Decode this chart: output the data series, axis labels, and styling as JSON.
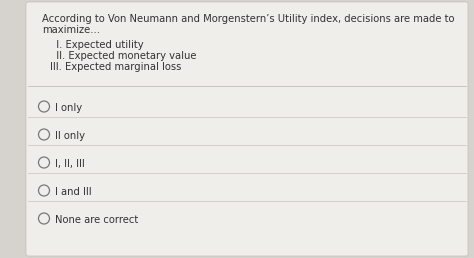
{
  "outer_bg": "#d6d3ce",
  "panel_bg": "#f0eeeb",
  "inner_bg": "#ebe9e6",
  "question_line1": "According to Von Neumann and Morgenstern’s Utility index, decisions are made to",
  "question_line2": "maximize...",
  "items": [
    "  I. Expected utility",
    "  II. Expected monetary value",
    "III. Expected marginal loss"
  ],
  "choices": [
    "I only",
    "II only",
    "I, II, III",
    "I and III",
    "None are correct"
  ],
  "text_color": "#333333",
  "line_color": "#c8c5c0",
  "circle_color": "#777777",
  "font_size": 7.2
}
